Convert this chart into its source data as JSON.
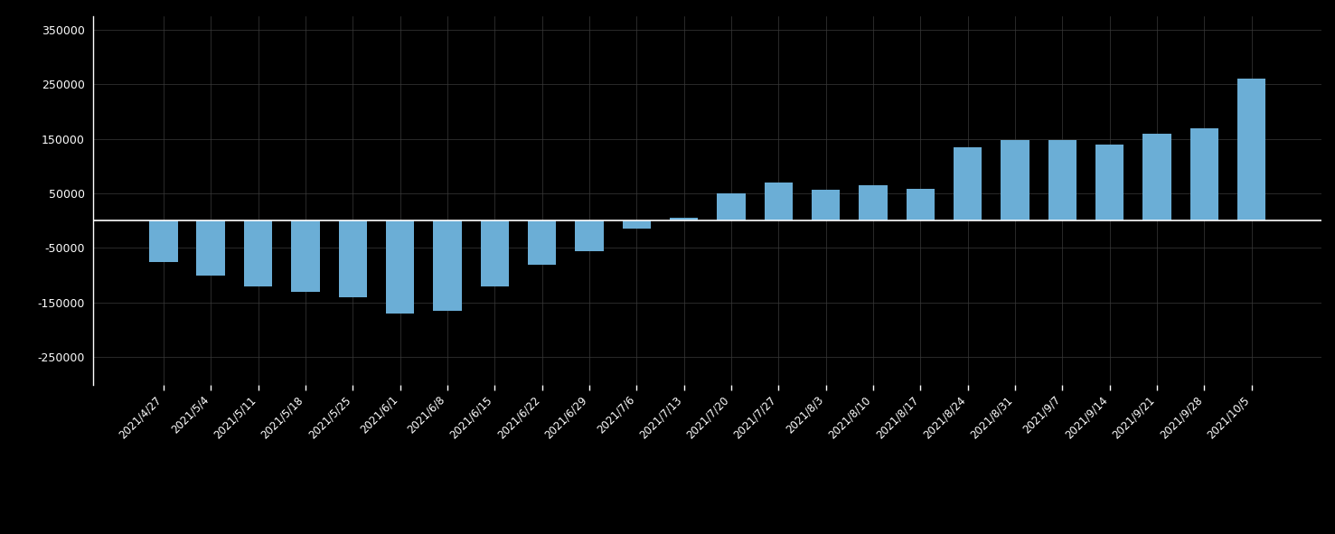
{
  "categories": [
    "2021/4/27",
    "2021/5/4",
    "2021/5/11",
    "2021/5/18",
    "2021/5/25",
    "2021/6/1",
    "2021/6/8",
    "2021/6/15",
    "2021/6/22",
    "2021/6/29",
    "2021/7/6",
    "2021/7/13",
    "2021/7/20",
    "2021/7/27",
    "2021/8/3",
    "2021/8/10",
    "2021/8/17",
    "2021/8/24",
    "2021/8/31",
    "2021/9/7",
    "2021/9/14",
    "2021/9/21",
    "2021/9/28",
    "2021/10/5"
  ],
  "values": [
    -75000,
    -100000,
    -120000,
    -130000,
    -140000,
    -170000,
    -165000,
    -120000,
    -80000,
    -55000,
    -15000,
    5000,
    50000,
    70000,
    57000,
    65000,
    58000,
    135000,
    148000,
    148000,
    140000,
    160000,
    170000,
    260000
  ],
  "bar_color": "#6baed6",
  "background_color": "#000000",
  "plot_background": "#000000",
  "text_color": "#ffffff",
  "grid_color": "#3a3a3a",
  "axhline_color": "#ffffff",
  "ylim": [
    -300000,
    375000
  ],
  "yticks": [
    -250000,
    -150000,
    -50000,
    50000,
    150000,
    250000,
    350000
  ]
}
